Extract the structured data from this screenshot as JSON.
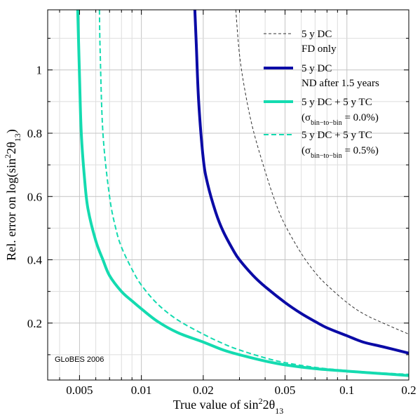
{
  "chart_data": {
    "type": "line",
    "xscale": "log",
    "xlim": [
      0.0035,
      0.2
    ],
    "ylim": [
      0.02,
      1.19
    ],
    "grid": true,
    "xlabel": {
      "main": "True value of sin",
      "sup": "2",
      "tail": "2θ",
      "sub": "13"
    },
    "ylabel": {
      "main": "Rel. error on log(sin",
      "sup": "2",
      "tail": "2θ",
      "sub": "13",
      "close": ")"
    },
    "x_ticks": [
      0.005,
      0.01,
      0.02,
      0.05,
      0.1,
      0.2
    ],
    "x_tick_labels": [
      "0.005",
      "0.01",
      "0.02",
      "0.05",
      "0.1",
      "0.2"
    ],
    "y_ticks": [
      0.2,
      0.4,
      0.6,
      0.8,
      1.0
    ],
    "y_tick_labels": [
      "0.2",
      "0.4",
      "0.6",
      "0.8",
      "1"
    ],
    "watermark": "GLoBES 2006",
    "legend_position": "top-right",
    "series": [
      {
        "name": "5 y DC",
        "name_line2": "FD only",
        "style": "thin-dashed",
        "color": "#333333",
        "x": [
          0.0288,
          0.03,
          0.032,
          0.035,
          0.04,
          0.045,
          0.05,
          0.06,
          0.07,
          0.08,
          0.1,
          0.12,
          0.15,
          0.2
        ],
        "y": [
          1.19,
          1.05,
          0.93,
          0.81,
          0.68,
          0.58,
          0.51,
          0.42,
          0.36,
          0.32,
          0.265,
          0.23,
          0.2,
          0.165
        ]
      },
      {
        "name": "5 y DC",
        "name_line2": "ND after 1.5 years",
        "style": "thick-solid",
        "color": "#0b0ba6",
        "x": [
          0.0182,
          0.0185,
          0.019,
          0.02,
          0.021,
          0.023,
          0.025,
          0.028,
          0.03,
          0.035,
          0.04,
          0.05,
          0.06,
          0.07,
          0.08,
          0.1,
          0.12,
          0.15,
          0.2
        ],
        "y": [
          1.19,
          1.08,
          0.9,
          0.72,
          0.64,
          0.55,
          0.49,
          0.43,
          0.4,
          0.35,
          0.315,
          0.265,
          0.23,
          0.205,
          0.185,
          0.16,
          0.14,
          0.125,
          0.105
        ]
      },
      {
        "name": "5 y DC + 5 y TC",
        "name_line2": {
          "open": "(σ",
          "sub": "bin−to−bin",
          "close": " = 0.0%)"
        },
        "style": "thick-solid",
        "color": "#14dbb0",
        "x": [
          0.0049,
          0.005,
          0.0051,
          0.0053,
          0.0055,
          0.006,
          0.0065,
          0.007,
          0.008,
          0.009,
          0.01,
          0.012,
          0.015,
          0.02,
          0.025,
          0.03,
          0.04,
          0.05,
          0.07,
          0.1,
          0.15,
          0.2
        ],
        "y": [
          1.19,
          0.98,
          0.8,
          0.65,
          0.56,
          0.46,
          0.4,
          0.35,
          0.3,
          0.27,
          0.245,
          0.205,
          0.17,
          0.14,
          0.115,
          0.1,
          0.08,
          0.068,
          0.056,
          0.048,
          0.04,
          0.034
        ]
      },
      {
        "name": "5 y DC + 5 y TC",
        "name_line2": {
          "open": "(σ",
          "sub": "bin−to−bin",
          "close": " = 0.5%)"
        },
        "style": "dashed",
        "color": "#14dbb0",
        "x": [
          0.00625,
          0.0063,
          0.0065,
          0.007,
          0.0075,
          0.008,
          0.009,
          0.01,
          0.012,
          0.015,
          0.02,
          0.025,
          0.03,
          0.04,
          0.05,
          0.07,
          0.1,
          0.15,
          0.2
        ],
        "y": [
          1.19,
          1.06,
          0.8,
          0.6,
          0.5,
          0.44,
          0.37,
          0.32,
          0.26,
          0.21,
          0.165,
          0.135,
          0.115,
          0.09,
          0.075,
          0.06,
          0.05,
          0.042,
          0.038
        ]
      }
    ]
  }
}
